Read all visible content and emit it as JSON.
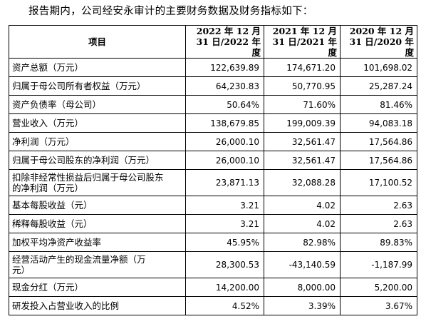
{
  "intro": "报告期内，公司经安永审计的主要财务数据及财务指标如下：",
  "table": {
    "headers": {
      "item": "项目",
      "y2022_line1": "2022 年 12 月",
      "y2022_line2": "31 日/2022 年度",
      "y2021_line1": "2021 年 12 月",
      "y2021_line2": "31 日/2021 年度",
      "y2020_line1": "2020 年 12 月",
      "y2020_line2": "31 日/2020 年度"
    },
    "rows": [
      {
        "label": "资产总额（万元）",
        "v2022": "122,639.89",
        "v2021": "174,671.20",
        "v2020": "101,698.02"
      },
      {
        "label": "归属于母公司所有者权益（万元）",
        "v2022": "64,230.83",
        "v2021": "50,770.95",
        "v2020": "25,287.24"
      },
      {
        "label": "资产负债率（母公司）",
        "v2022": "50.64%",
        "v2021": "71.60%",
        "v2020": "81.46%"
      },
      {
        "label": "营业收入（万元）",
        "v2022": "138,679.85",
        "v2021": "199,009.39",
        "v2020": "94,083.18"
      },
      {
        "label": "净利润（万元）",
        "v2022": "26,000.10",
        "v2021": "32,561.47",
        "v2020": "17,564.86"
      },
      {
        "label": "归属于母公司股东的净利润（万元）",
        "v2022": "26,000.10",
        "v2021": "32,561.47",
        "v2020": "17,564.86"
      },
      {
        "label_line1": "扣除非经常性损益后归属于母公司股东",
        "label_line2": "的净利润（万元）",
        "v2022": "23,871.13",
        "v2021": "32,088.28",
        "v2020": "17,100.52"
      },
      {
        "label": "基本每股收益（元）",
        "v2022": "3.21",
        "v2021": "4.02",
        "v2020": "2.63"
      },
      {
        "label": "稀释每股收益（元）",
        "v2022": "3.21",
        "v2021": "4.02",
        "v2020": "2.63"
      },
      {
        "label": "加权平均净资产收益率",
        "v2022": "45.95%",
        "v2021": "82.98%",
        "v2020": "89.83%"
      },
      {
        "label_line1": "经营活动产生的现金流量净额（万",
        "label_line2": "元）",
        "v2022": "28,300.53",
        "v2021": "-43,140.59",
        "v2020": "-1,187.99"
      },
      {
        "label": "现金分红（万元）",
        "v2022": "14,200.00",
        "v2021": "8,000.00",
        "v2020": "5,200.00"
      },
      {
        "label": "研发投入占营业收入的比例",
        "v2022": "4.52%",
        "v2021": "3.39%",
        "v2020": "3.67%"
      }
    ]
  }
}
